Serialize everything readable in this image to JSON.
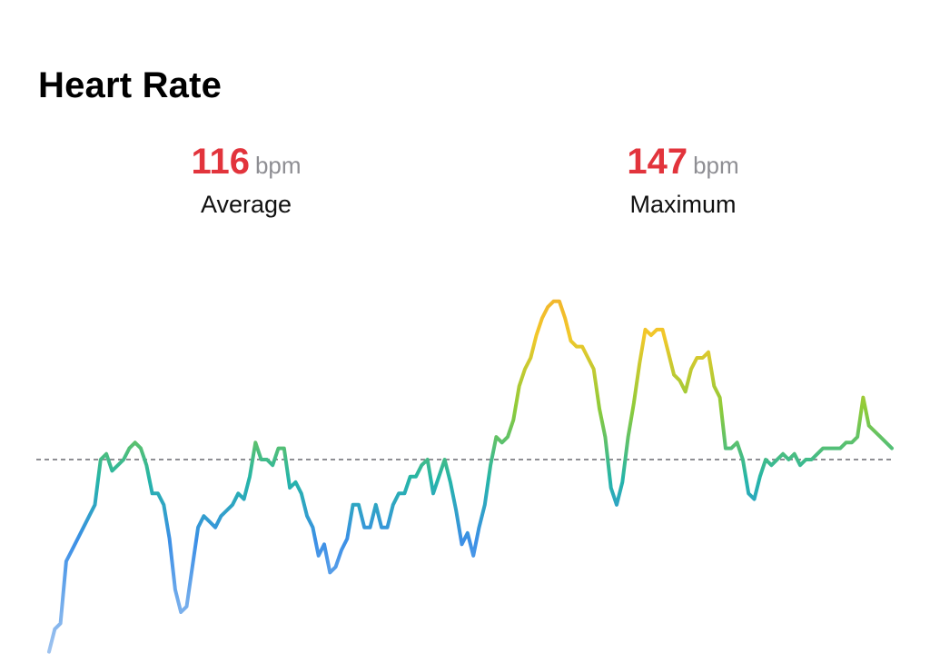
{
  "title": "Heart Rate",
  "stats": {
    "average": {
      "value": "116",
      "unit": "bpm",
      "label": "Average"
    },
    "maximum": {
      "value": "147",
      "unit": "bpm",
      "label": "Maximum"
    }
  },
  "colors": {
    "stat_value": "#e2343c",
    "unit": "#8e8e93",
    "average_line": "#8e8e93",
    "gradient_low": "#3b8fe6",
    "gradient_mid": "#8ccb3a",
    "gradient_high": "#f0a030"
  },
  "chart_data": {
    "type": "line",
    "title": "",
    "xlabel": "",
    "ylabel": "",
    "ylim": [
      80,
      152
    ],
    "reference_line": {
      "value": 116,
      "style": "dashed"
    },
    "grid": false,
    "series": [
      {
        "values": [
          82,
          86,
          87,
          98,
          100,
          102,
          104,
          106,
          108,
          116,
          117,
          114,
          115,
          116,
          118,
          119,
          118,
          115,
          110,
          110,
          108,
          102,
          93,
          89,
          90,
          97,
          104,
          106,
          105,
          104,
          106,
          107,
          108,
          110,
          109,
          113,
          119,
          116,
          116,
          115,
          118,
          118,
          111,
          112,
          110,
          106,
          104,
          99,
          101,
          96,
          97,
          100,
          102,
          108,
          108,
          104,
          104,
          108,
          104,
          104,
          108,
          110,
          110,
          113,
          113,
          115,
          116,
          110,
          113,
          116,
          112,
          107,
          101,
          103,
          99,
          104,
          108,
          115,
          120,
          119,
          120,
          123,
          129,
          132,
          134,
          138,
          141,
          143,
          144,
          144,
          141,
          137,
          136,
          136,
          134,
          132,
          125,
          120,
          111,
          108,
          112,
          120,
          126,
          133,
          139,
          138,
          139,
          139,
          135,
          131,
          130,
          128,
          132,
          134,
          134,
          135,
          129,
          127,
          118,
          118,
          119,
          116,
          110,
          109,
          113,
          116,
          115,
          116,
          117,
          116,
          117,
          115,
          116,
          116,
          117,
          118,
          118,
          118,
          118,
          119,
          119,
          120,
          127,
          122,
          121,
          120,
          119,
          118
        ]
      }
    ]
  }
}
